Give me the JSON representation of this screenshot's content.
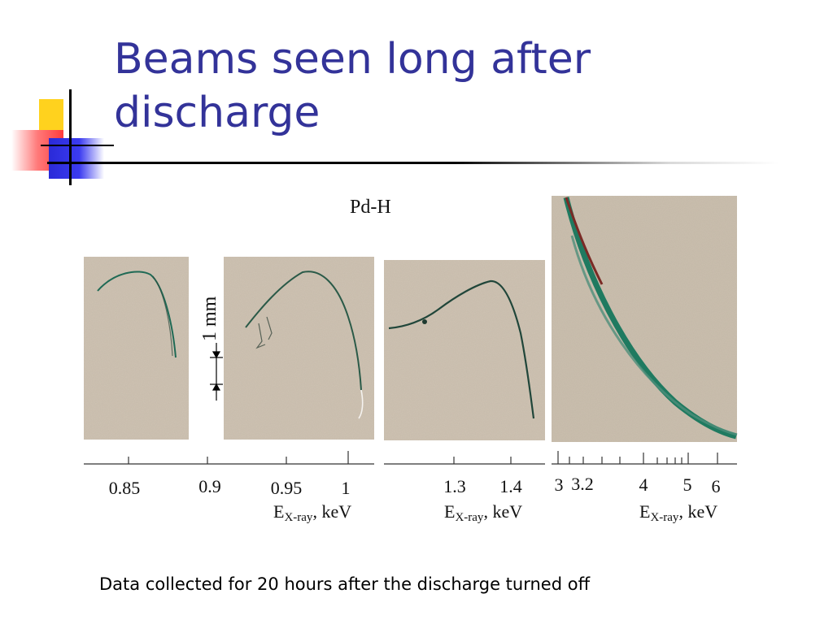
{
  "slide": {
    "title": "Beams seen long after discharge",
    "caption": "Data collected for 20 hours after the discharge turned off"
  },
  "figure": {
    "sample_label": "Pd-H",
    "scale_label": "1 mm",
    "panels": [
      {
        "ticks": [
          "0.85",
          "0.9",
          "0.95",
          "1"
        ],
        "axis_label": "E",
        "axis_sub": "X-ray",
        "axis_unit": ", keV"
      },
      {
        "ticks": [
          "1.3",
          "1.4"
        ],
        "axis_label": "E",
        "axis_sub": "X-ray",
        "axis_unit": ", keV"
      },
      {
        "ticks": [
          "3",
          "3.2",
          "4",
          "5",
          "6"
        ],
        "axis_label": "E",
        "axis_sub": "X-ray",
        "axis_unit": ", keV"
      }
    ]
  },
  "colors": {
    "title": "#333399",
    "photo_bg": "#cfc3b2",
    "beam": "#1f6a55"
  }
}
